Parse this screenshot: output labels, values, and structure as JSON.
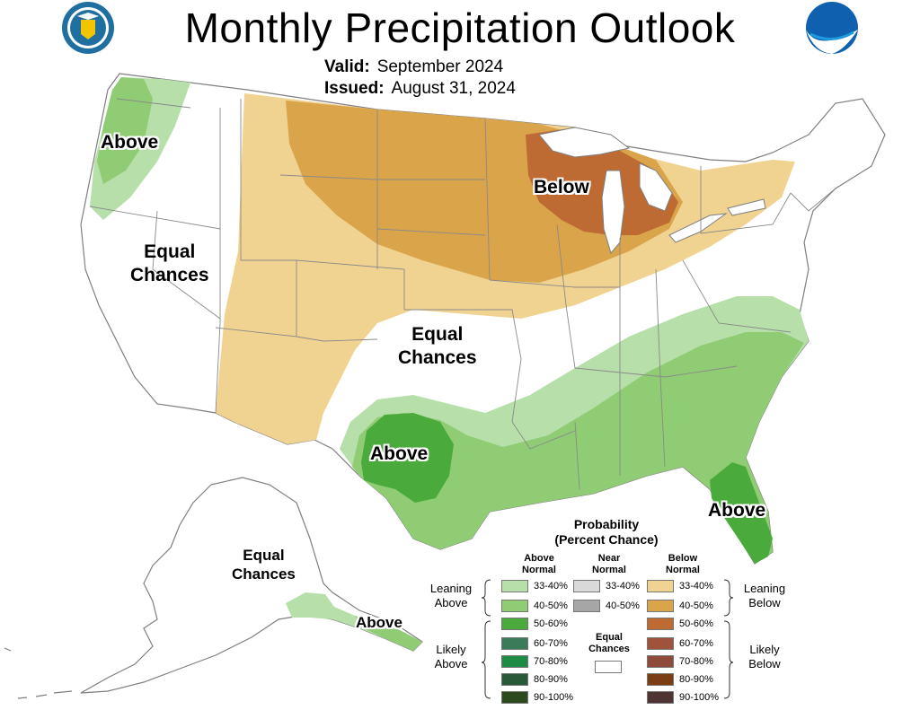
{
  "header": {
    "title": "Monthly Precipitation Outlook",
    "valid_label": "Valid:",
    "valid_value": "September 2024",
    "issued_label": "Issued:",
    "issued_value": "August 31, 2024"
  },
  "regions": {
    "pnw_above": "Above",
    "west_equal_line1": "Equal",
    "west_equal_line2": "Chances",
    "north_below": "Below",
    "central_equal_line1": "Equal",
    "central_equal_line2": "Chances",
    "texas_above": "Above",
    "florida_above": "Above",
    "alaska_equal_line1": "Equal",
    "alaska_equal_line2": "Chances",
    "alaska_above": "Above"
  },
  "legend": {
    "title_line1": "Probability",
    "title_line2": "(Percent Chance)",
    "above_head_line1": "Above",
    "above_head_line2": "Normal",
    "near_head_line1": "Near",
    "near_head_line2": "Normal",
    "below_head_line1": "Below",
    "below_head_line2": "Normal",
    "leaning_above_line1": "Leaning",
    "leaning_above_line2": "Above",
    "leaning_below_line1": "Leaning",
    "leaning_below_line2": "Below",
    "likely_above_line1": "Likely",
    "likely_above_line2": "Above",
    "likely_below_line1": "Likely",
    "likely_below_line2": "Below",
    "equal_line1": "Equal",
    "equal_line2": "Chances",
    "above_items": [
      {
        "label": "33-40%",
        "color": "#b6dfaa"
      },
      {
        "label": "40-50%",
        "color": "#8fcc74"
      },
      {
        "label": "50-60%",
        "color": "#4aaa3c"
      },
      {
        "label": "60-70%",
        "color": "#3a7c5a"
      },
      {
        "label": "70-80%",
        "color": "#1e8c44"
      },
      {
        "label": "80-90%",
        "color": "#285a3a"
      },
      {
        "label": "90-100%",
        "color": "#2c4a1e"
      }
    ],
    "near_items": [
      {
        "label": "33-40%",
        "color": "#d9d9d9"
      },
      {
        "label": "40-50%",
        "color": "#a6a6a6"
      }
    ],
    "below_items": [
      {
        "label": "33-40%",
        "color": "#f1d391"
      },
      {
        "label": "40-50%",
        "color": "#d9a44a"
      },
      {
        "label": "50-60%",
        "color": "#be6a33"
      },
      {
        "label": "60-70%",
        "color": "#a0523a"
      },
      {
        "label": "70-80%",
        "color": "#8e4a3a"
      },
      {
        "label": "80-90%",
        "color": "#7a3e12"
      },
      {
        "label": "90-100%",
        "color": "#4e3433"
      }
    ]
  },
  "colors": {
    "ocean": "#ffffff",
    "land": "#ffffff",
    "border": "#808080",
    "lake": "#ffffff",
    "above_33_40": "#b6dfaa",
    "above_40_50": "#8fcc74",
    "above_50_60": "#4aaa3c",
    "below_33_40": "#f1d391",
    "below_40_50": "#d9a44a",
    "below_50_60": "#be6a33",
    "doc_seal": "#1f6fa0",
    "noaa_blue": "#1060b0"
  }
}
